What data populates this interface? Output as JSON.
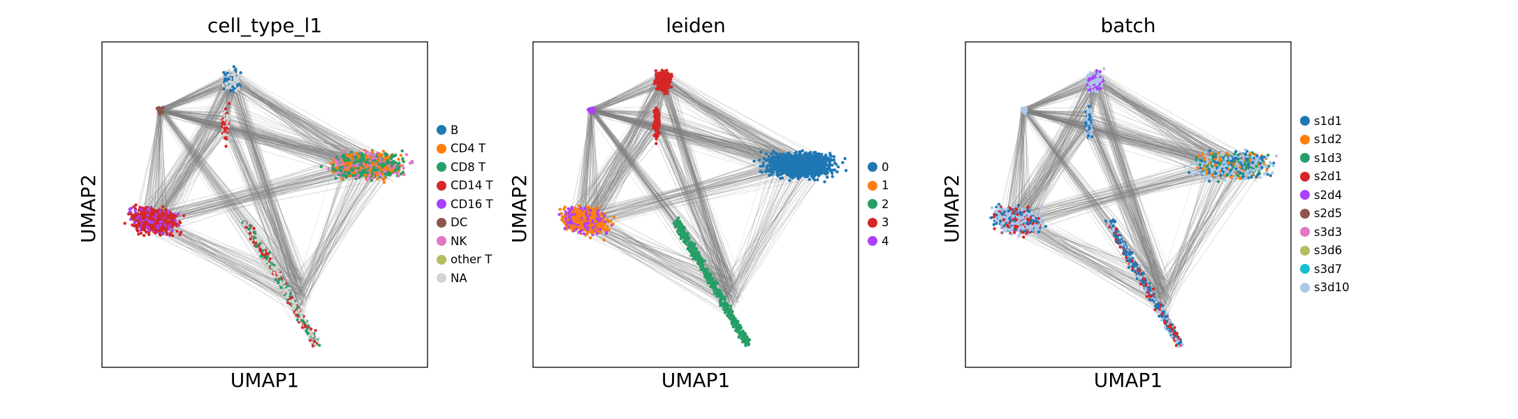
{
  "chart_data": [
    {
      "type": "scatter",
      "title": "cell_type_l1",
      "xlabel": "UMAP1",
      "ylabel": "UMAP2",
      "legend_placement": "right",
      "grid": false,
      "legend": [
        {
          "label": "B",
          "color": "#1f77b4"
        },
        {
          "label": "CD4 T",
          "color": "#ff7f0e"
        },
        {
          "label": "CD8 T",
          "color": "#279e68"
        },
        {
          "label": "CD14 T",
          "color": "#d62728"
        },
        {
          "label": "CD16 T",
          "color": "#aa40fc"
        },
        {
          "label": "DC",
          "color": "#8c564b"
        },
        {
          "label": "NK",
          "color": "#e377c2"
        },
        {
          "label": "other T",
          "color": "#b5bd61"
        },
        {
          "label": "NA",
          "color": "#d3d3d3"
        }
      ]
    },
    {
      "type": "scatter",
      "title": "leiden",
      "xlabel": "UMAP1",
      "ylabel": "UMAP2",
      "legend_placement": "right",
      "grid": false,
      "legend": [
        {
          "label": "0",
          "color": "#1f77b4"
        },
        {
          "label": "1",
          "color": "#ff7f0e"
        },
        {
          "label": "2",
          "color": "#279e68"
        },
        {
          "label": "3",
          "color": "#d62728"
        },
        {
          "label": "4",
          "color": "#aa40fc"
        }
      ]
    },
    {
      "type": "scatter",
      "title": "batch",
      "xlabel": "UMAP1",
      "ylabel": "UMAP2",
      "legend_placement": "right",
      "grid": false,
      "legend": [
        {
          "label": "s1d1",
          "color": "#1f77b4"
        },
        {
          "label": "s1d2",
          "color": "#ff7f0e"
        },
        {
          "label": "s1d3",
          "color": "#279e68"
        },
        {
          "label": "s2d1",
          "color": "#d62728"
        },
        {
          "label": "s2d4",
          "color": "#aa40fc"
        },
        {
          "label": "s2d5",
          "color": "#8c564b"
        },
        {
          "label": "s3d3",
          "color": "#e377c2"
        },
        {
          "label": "s3d6",
          "color": "#b5bd61"
        },
        {
          "label": "s3d7",
          "color": "#17becf"
        },
        {
          "label": "s3d10",
          "color": "#aec7e8"
        }
      ]
    }
  ]
}
